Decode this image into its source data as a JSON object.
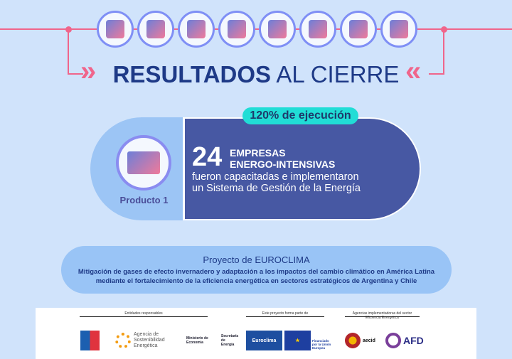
{
  "header": {
    "title_bold": "RESULTADOS",
    "title_light": "AL CIERRE",
    "icons": [
      "factory-leaf-icon",
      "building-leaf-icon",
      "lightbulb-graduation-icon",
      "house-chart-icon",
      "monitor-charger-icon",
      "energy-label-icon",
      "trucks-icon",
      "smartphone-icon"
    ]
  },
  "card": {
    "badge": "120% de ejecución",
    "product_label": "Producto 1",
    "number": "24",
    "heading_line1": "EMPRESAS",
    "heading_line2": "ENERGO-INTENSIVAS",
    "desc_line1": "fueron capacitadas e implementaron",
    "desc_line2": "un Sistema de Gestión de la Energía"
  },
  "project": {
    "title": "Proyecto de EUROCLIMA",
    "line1": "Mitigación de gases de efecto invernadero y adaptación a los impactos del cambio climático en América Latina",
    "line2": "mediante el fortalecimiento de la eficiencia energética en sectores estratégicos de Argentina y Chile"
  },
  "footer": {
    "group1": "Entidades responsables",
    "group2": "Este proyecto forma parte de",
    "group3": "Agencias implementadoras del sector Eficiencia Energética",
    "ase": "Agencia de Sostenibilidad Energética",
    "ministerio": "Ministerio de Economía",
    "secretaria": "Secretaría de Energía",
    "euroclima": "Euroclima",
    "eu": "Financiado por la Unión Europea",
    "aecid": "aecid",
    "afd": "AFD"
  },
  "colors": {
    "background": "#d0e3fb",
    "accent": "#f0658b",
    "title": "#1e3a87",
    "card": "#4758a3",
    "badge": "#21ddd6"
  }
}
